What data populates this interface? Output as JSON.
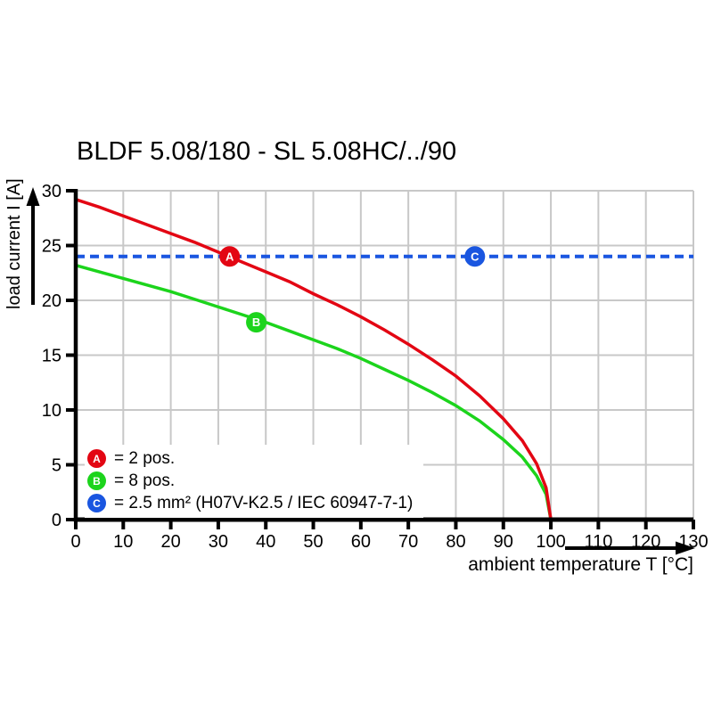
{
  "chart_data": {
    "type": "line",
    "title": "BLDF 5.08/180 - SL 5.08HC/../90",
    "xlabel": "ambient temperature T [°C]",
    "ylabel": "load current I [A]",
    "xlim": [
      0,
      130
    ],
    "ylim": [
      0,
      30
    ],
    "x_ticks": [
      0,
      10,
      20,
      30,
      40,
      50,
      60,
      70,
      80,
      90,
      100,
      110,
      120,
      130
    ],
    "y_ticks": [
      0,
      5,
      10,
      15,
      20,
      25,
      30
    ],
    "grid": true,
    "grid_color": "#c8c8c8",
    "axis_color": "#000000",
    "series": [
      {
        "name": "A",
        "label": "2 pos.",
        "color": "#e30613",
        "style": "solid",
        "x": [
          0,
          5,
          10,
          15,
          20,
          25,
          30,
          35,
          40,
          45,
          50,
          55,
          60,
          65,
          70,
          75,
          80,
          85,
          90,
          94,
          97,
          99,
          100
        ],
        "y": [
          29.2,
          28.5,
          27.7,
          26.9,
          26.1,
          25.3,
          24.4,
          23.5,
          22.6,
          21.7,
          20.6,
          19.6,
          18.5,
          17.3,
          16.0,
          14.6,
          13.1,
          11.3,
          9.2,
          7.2,
          5.1,
          2.9,
          0
        ],
        "marker": {
          "letter": "A",
          "x": 32.4,
          "y": 24
        }
      },
      {
        "name": "B",
        "label": "8 pos.",
        "color": "#1cd41c",
        "style": "solid",
        "x": [
          0,
          5,
          10,
          15,
          20,
          25,
          30,
          35,
          40,
          45,
          50,
          55,
          60,
          65,
          70,
          75,
          80,
          85,
          90,
          94,
          97,
          99,
          100
        ],
        "y": [
          23.2,
          22.6,
          22.0,
          21.4,
          20.8,
          20.1,
          19.4,
          18.7,
          18.0,
          17.2,
          16.4,
          15.6,
          14.7,
          13.7,
          12.7,
          11.6,
          10.4,
          9.0,
          7.3,
          5.7,
          4.0,
          2.3,
          0
        ],
        "marker": {
          "letter": "B",
          "x": 38,
          "y": 18
        }
      },
      {
        "name": "C",
        "label": "2.5 mm² (H07V-K2.5 / IEC 60947-7-1)",
        "color": "#1a56e0",
        "style": "dashed",
        "x": [
          0,
          130
        ],
        "y": [
          24,
          24
        ],
        "marker": {
          "letter": "C",
          "x": 84,
          "y": 24
        }
      }
    ],
    "legend": {
      "position": "bottom-left-inside",
      "items": [
        {
          "letter": "A",
          "text": "= 2 pos."
        },
        {
          "letter": "B",
          "text": "= 8 pos."
        },
        {
          "letter": "C",
          "text": "= 2.5 mm² (H07V-K2.5 / IEC 60947-7-1)"
        }
      ]
    }
  }
}
